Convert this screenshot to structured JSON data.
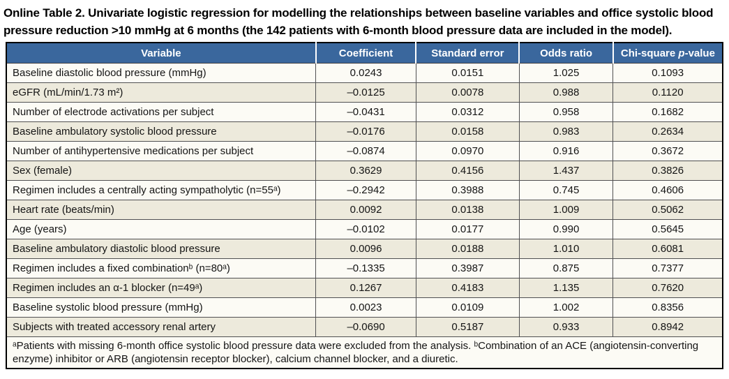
{
  "title": "Online Table 2. Univariate logistic regression for modelling the relationships between baseline variables and office systolic blood pressure reduction >10 mmHg at 6 months (the 142 patients with 6-month blood pressure data are included in the model).",
  "colors": {
    "header_bg": "#3a679d",
    "header_text": "#ffffff",
    "row_even_bg": "#fcfbf5",
    "row_odd_bg": "#edeadc",
    "outer_border": "#000000",
    "grid_line": "#505052"
  },
  "table": {
    "headers": [
      "Variable",
      "Coefficient",
      "Standard error",
      "Odds ratio"
    ],
    "last_header": {
      "pre": "Chi-square ",
      "italic": "p",
      "post": "-value"
    },
    "rows": [
      {
        "variable": "Baseline diastolic blood pressure (mmHg)",
        "coefficient": "0.0243",
        "standard_error": "0.0151",
        "odds_ratio": "1.025",
        "p_value": "0.1093"
      },
      {
        "variable": "eGFR (mL/min/1.73 m²)",
        "coefficient": "–0.0125",
        "standard_error": "0.0078",
        "odds_ratio": "0.988",
        "p_value": "0.1120"
      },
      {
        "variable": "Number of electrode activations per subject",
        "coefficient": "–0.0431",
        "standard_error": "0.0312",
        "odds_ratio": "0.958",
        "p_value": "0.1682"
      },
      {
        "variable": "Baseline ambulatory systolic blood pressure",
        "coefficient": "–0.0176",
        "standard_error": "0.0158",
        "odds_ratio": "0.983",
        "p_value": "0.2634"
      },
      {
        "variable": "Number of antihypertensive medications per subject",
        "coefficient": "–0.0874",
        "standard_error": "0.0970",
        "odds_ratio": "0.916",
        "p_value": "0.3672"
      },
      {
        "variable": "Sex (female)",
        "coefficient": "0.3629",
        "standard_error": "0.4156",
        "odds_ratio": "1.437",
        "p_value": "0.3826"
      },
      {
        "variable": "Regimen includes a centrally acting sympatholytic (n=55ᵃ)",
        "coefficient": "–0.2942",
        "standard_error": "0.3988",
        "odds_ratio": "0.745",
        "p_value": "0.4606"
      },
      {
        "variable": "Heart rate (beats/min)",
        "coefficient": "0.0092",
        "standard_error": "0.0138",
        "odds_ratio": "1.009",
        "p_value": "0.5062"
      },
      {
        "variable": "Age (years)",
        "coefficient": "–0.0102",
        "standard_error": "0.0177",
        "odds_ratio": "0.990",
        "p_value": "0.5645"
      },
      {
        "variable": "Baseline ambulatory diastolic blood pressure",
        "coefficient": "0.0096",
        "standard_error": "0.0188",
        "odds_ratio": "1.010",
        "p_value": "0.6081"
      },
      {
        "variable": "Regimen includes a fixed combinationᵇ (n=80ᵃ)",
        "coefficient": "–0.1335",
        "standard_error": "0.3987",
        "odds_ratio": "0.875",
        "p_value": "0.7377"
      },
      {
        "variable": "Regimen includes an α-1 blocker (n=49ᵃ)",
        "coefficient": "0.1267",
        "standard_error": "0.4183",
        "odds_ratio": "1.135",
        "p_value": "0.7620"
      },
      {
        "variable": "Baseline systolic blood pressure (mmHg)",
        "coefficient": "0.0023",
        "standard_error": "0.0109",
        "odds_ratio": "1.002",
        "p_value": "0.8356"
      },
      {
        "variable": "Subjects with treated accessory renal artery",
        "coefficient": "–0.0690",
        "standard_error": "0.5187",
        "odds_ratio": "0.933",
        "p_value": "0.8942"
      }
    ],
    "footnote": "ᵃPatients with missing 6-month office systolic blood pressure data were excluded from the analysis. ᵇCombination of an ACE (angiotensin-converting enzyme) inhibitor or ARB (angiotensin receptor blocker), calcium channel blocker, and a diuretic."
  }
}
